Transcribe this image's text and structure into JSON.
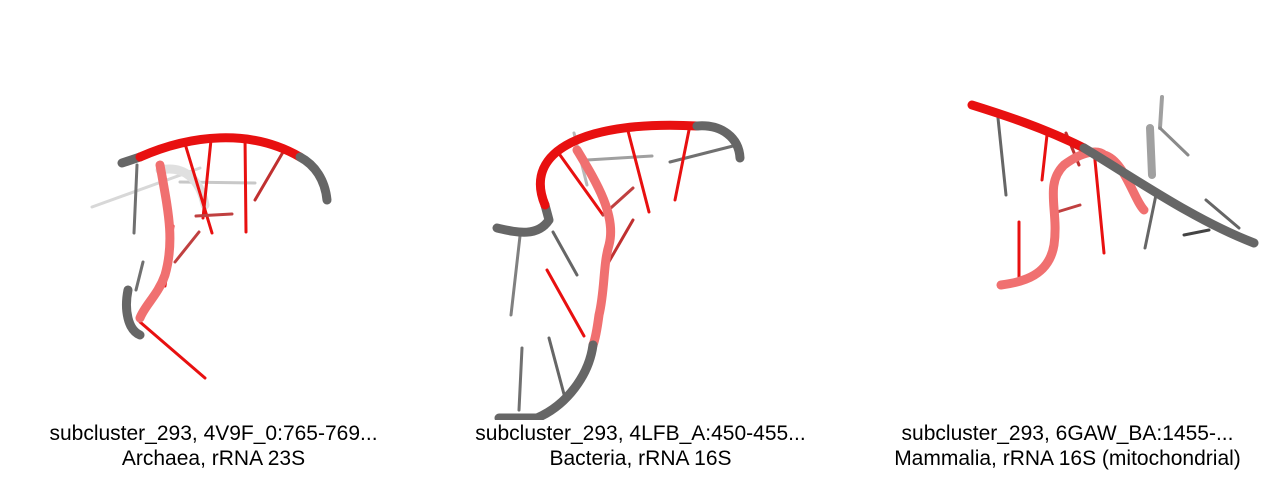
{
  "panels": [
    {
      "line1": "subcluster_293, 4V9F_0:765-769...",
      "line2": "Archaea, rRNA 23S"
    },
    {
      "line1": "subcluster_293, 4LFB_A:450-455...",
      "line2": "Bacteria, rRNA 16S"
    },
    {
      "line1": "subcluster_293, 6GAW_BA:1455-...",
      "line2": "Mammalia, rRNA 16S (mitochondrial)"
    }
  ],
  "colors": {
    "highlight": "#e81010",
    "highlight_light": "#f07070",
    "backbone": "#666666",
    "backbone_light": "#b0b0b0"
  }
}
